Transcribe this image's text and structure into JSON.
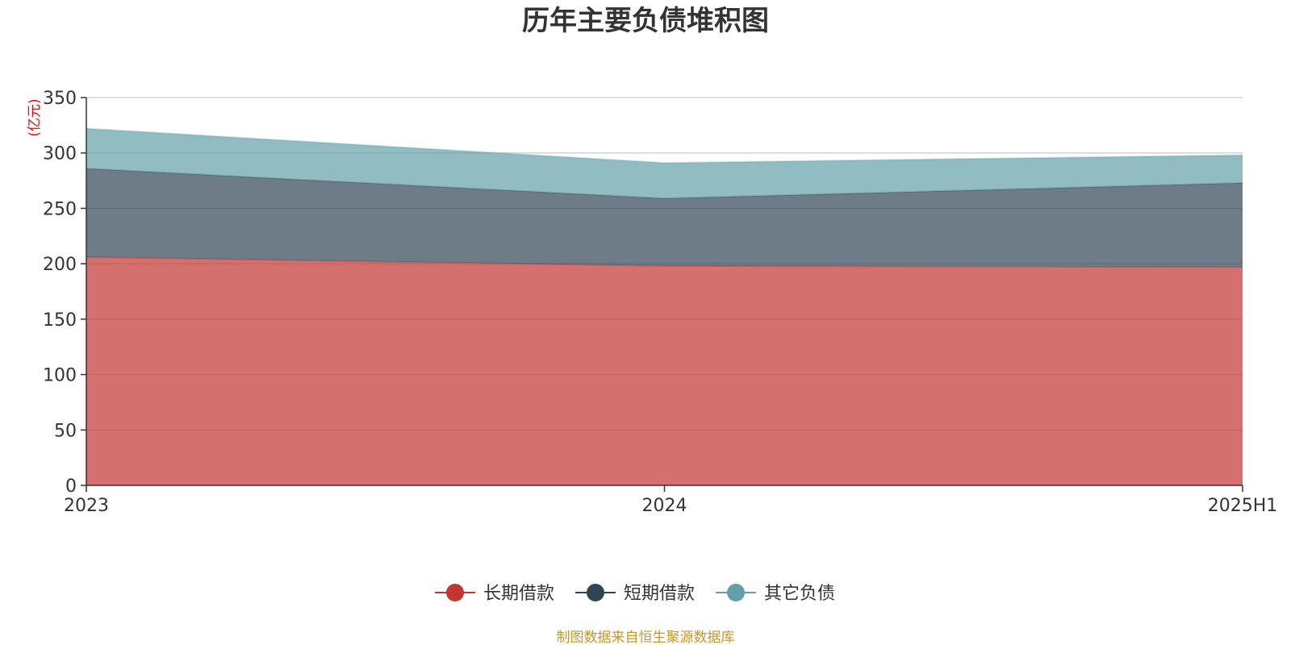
{
  "chart_data": {
    "type": "area",
    "stacked": true,
    "title": "历年主要负债堆积图",
    "unit_label": "(亿元)",
    "categories": [
      "2023",
      "2024",
      "2025H1"
    ],
    "series": [
      {
        "name": "长期借款",
        "color": "#c23531",
        "values": [
          206,
          198,
          197
        ]
      },
      {
        "name": "短期借款",
        "color": "#2f4554",
        "values": [
          80,
          61,
          76
        ]
      },
      {
        "name": "其它负债",
        "color": "#61a0a8",
        "values": [
          36,
          32,
          25
        ]
      }
    ],
    "ylim": [
      0,
      350
    ],
    "yticks": [
      0,
      50,
      100,
      150,
      200,
      250,
      300,
      350
    ],
    "grid": true,
    "legend_position": "bottom-center",
    "source": "制图数据来自恒生聚源数据库"
  }
}
